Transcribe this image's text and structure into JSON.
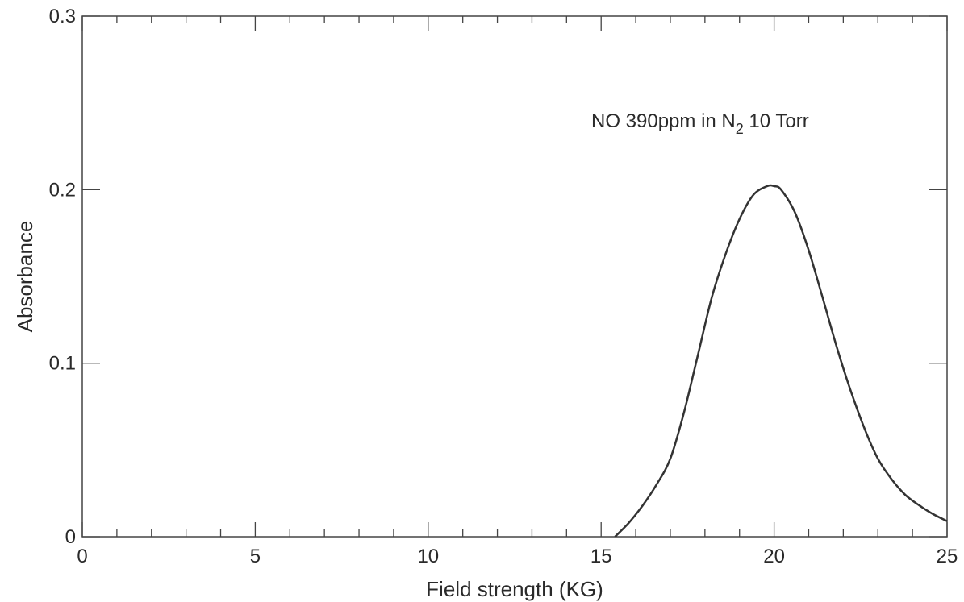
{
  "chart_data": {
    "type": "line",
    "title": "",
    "xlabel": "Field strength (KG)",
    "ylabel": "Absorbance",
    "xlim": [
      0,
      25
    ],
    "ylim": [
      0,
      0.3
    ],
    "x_ticks": [
      0,
      5,
      10,
      15,
      20,
      25
    ],
    "x_tick_labels": [
      "0",
      "5",
      "10",
      "15",
      "20",
      "25"
    ],
    "y_ticks": [
      0,
      0.1,
      0.2,
      0.3
    ],
    "y_tick_labels": [
      "0",
      "0.1",
      "0.2",
      "0.3"
    ],
    "grid": false,
    "line_color": "#333333",
    "annotation": {
      "prefix": "NO 390ppm in N",
      "subscript": "2",
      "suffix": " 10 Torr"
    },
    "series": [
      {
        "x": [
          15.4,
          15.8,
          16.2,
          16.6,
          17.0,
          17.4,
          17.8,
          18.2,
          18.6,
          19.0,
          19.4,
          19.8,
          20.0,
          20.2,
          20.6,
          21.0,
          21.4,
          21.8,
          22.2,
          22.6,
          23.0,
          23.4,
          23.8,
          24.2,
          24.6,
          25.0
        ],
        "y": [
          0.0,
          0.008,
          0.018,
          0.03,
          0.045,
          0.072,
          0.105,
          0.138,
          0.163,
          0.183,
          0.197,
          0.202,
          0.202,
          0.2,
          0.187,
          0.165,
          0.138,
          0.11,
          0.085,
          0.063,
          0.045,
          0.033,
          0.024,
          0.018,
          0.013,
          0.009
        ]
      }
    ]
  }
}
